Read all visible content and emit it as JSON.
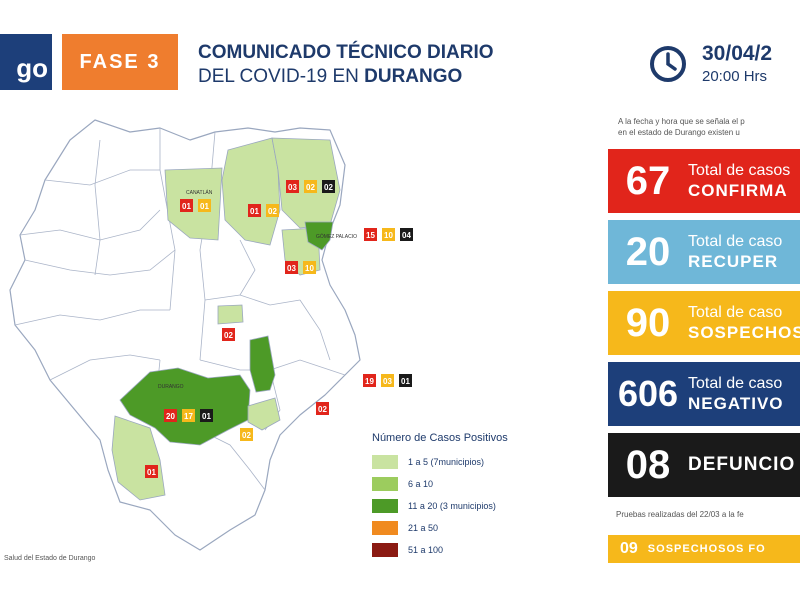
{
  "header": {
    "logo_text": "go",
    "phase": "FASE 3",
    "title_line1": "COMUNICADO TÉCNICO DIARIO",
    "title_line2_prefix": "DEL COVID-19 EN ",
    "title_line2_bold": "DURANGO",
    "date": "30/04/2",
    "time": "20:00 Hrs"
  },
  "intro": {
    "line1": "A la fecha y hora que se señala el p",
    "line2": "en el estado de Durango existen u"
  },
  "stats": [
    {
      "value": "67",
      "label1": "Total de casos",
      "label2": "CONFIRMA",
      "color": "#e1251b"
    },
    {
      "value": "20",
      "label1": "Total de caso",
      "label2": "RECUPER",
      "color": "#6fb7d8"
    },
    {
      "value": "90",
      "label1": "Total de caso",
      "label2": "SOSPECHOS",
      "color": "#f6b81b"
    },
    {
      "value": "606",
      "label1": "Total de caso",
      "label2": "NEGATIVO",
      "color": "#1d3f7a"
    },
    {
      "value": "08",
      "label1": "",
      "label2": "DEFUNCIO",
      "color": "#1a1a1a"
    }
  ],
  "footnote": "Pruebas realizadas del 22/03 a la fe",
  "bottom_bar": {
    "value": "09",
    "label": "SOSPECHOSOS FO"
  },
  "legend": {
    "title": "Número de Casos Positivos",
    "items": [
      {
        "label": "1 a 5    (7municipios)",
        "color": "#c9e3a1"
      },
      {
        "label": "6 a 10",
        "color": "#9ccc5e"
      },
      {
        "label": "11 a 20  (3 municipios)",
        "color": "#4d9a27"
      },
      {
        "label": "21 a 50",
        "color": "#f08a1f"
      },
      {
        "label": "51 a 100",
        "color": "#8b1a12"
      }
    ]
  },
  "source": "Salud del Estado de Durango",
  "map": {
    "badge_colors": {
      "confirmed": "#e1251b",
      "recovered": "#f6b81b",
      "deaths": "#1a1a1a"
    },
    "municipalities": [
      {
        "name": "CANATLÁN",
        "label": "01"
      },
      {
        "name": "",
        "label": "01"
      },
      {
        "name": "",
        "label": "01"
      },
      {
        "name": "",
        "label": "02"
      },
      {
        "name": "",
        "label": "03"
      },
      {
        "name": "",
        "label": "02"
      },
      {
        "name": "",
        "label": "02"
      },
      {
        "name": "GÓMEZ PALACIO",
        "label": "15"
      },
      {
        "name": "",
        "label": "10"
      },
      {
        "name": "",
        "label": "04"
      },
      {
        "name": "",
        "label": "03"
      },
      {
        "name": "",
        "label": "10"
      },
      {
        "name": "",
        "label": "02"
      },
      {
        "name": "DURANGO",
        "label": "20"
      },
      {
        "name": "",
        "label": "17"
      },
      {
        "name": "",
        "label": "01"
      },
      {
        "name": "",
        "label": "19"
      },
      {
        "name": "",
        "label": "03"
      },
      {
        "name": "",
        "label": "01"
      },
      {
        "name": "",
        "label": "02"
      },
      {
        "name": "",
        "label": "02"
      },
      {
        "name": "",
        "label": "01"
      }
    ]
  }
}
